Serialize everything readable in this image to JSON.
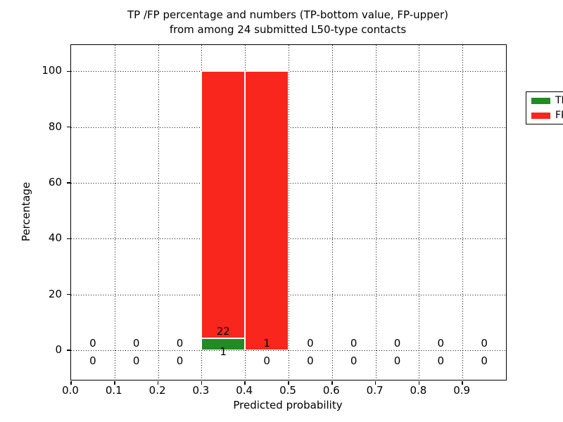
{
  "title": {
    "line1": "TP /FP percentage and numbers (TP-bottom value, FP-upper)",
    "line2": "from among 24 submitted L50-type contacts"
  },
  "axes": {
    "xlabel": "Predicted probability",
    "ylabel": "Percentage",
    "x_tick_labels": [
      "0.0",
      "0.1",
      "0.2",
      "0.3",
      "0.4",
      "0.5",
      "0.6",
      "0.7",
      "0.8",
      "0.9"
    ],
    "x_tick_values": [
      0.0,
      0.1,
      0.2,
      0.3,
      0.4,
      0.5,
      0.6,
      0.7,
      0.8,
      0.9
    ],
    "y_tick_labels": [
      "0",
      "20",
      "40",
      "60",
      "80",
      "100"
    ],
    "y_tick_values": [
      0,
      20,
      40,
      60,
      80,
      100
    ]
  },
  "legend": {
    "items": [
      {
        "name": "TP",
        "label": "TP",
        "color": "#228b22"
      },
      {
        "name": "FP",
        "label": "FP",
        "color": "#f9261d"
      }
    ]
  },
  "colors": {
    "tp": "#228b22",
    "fp": "#f9261d",
    "grid": "#000000",
    "text": "#000000",
    "background": "#ffffff"
  },
  "chart_data": {
    "type": "bar",
    "stacked": true,
    "title": "TP /FP percentage and numbers (TP-bottom value, FP-upper) from among 24 submitted L50-type contacts",
    "xlabel": "Predicted probability",
    "ylabel": "Percentage",
    "xlim": [
      0.0,
      1.0
    ],
    "ylim": [
      -10.6,
      109.4
    ],
    "bin_width": 0.1,
    "grid": "dotted",
    "legend_position": "upper right",
    "total_contacts": 24,
    "categories": [
      "0.0-0.1",
      "0.1-0.2",
      "0.2-0.3",
      "0.3-0.4",
      "0.4-0.5",
      "0.5-0.6",
      "0.6-0.7",
      "0.7-0.8",
      "0.8-0.9",
      "0.9-1.0"
    ],
    "series": [
      {
        "name": "TP",
        "color": "#228b22",
        "counts": [
          0,
          0,
          0,
          1,
          0,
          0,
          0,
          0,
          0,
          0
        ]
      },
      {
        "name": "FP",
        "color": "#f9261d",
        "counts": [
          0,
          0,
          0,
          22,
          1,
          0,
          0,
          0,
          0,
          0
        ]
      }
    ],
    "bins": [
      {
        "x_start": 0.0,
        "x_end": 0.1,
        "tp_count": 0,
        "fp_count": 0,
        "tp_pct": 0,
        "fp_pct": 0
      },
      {
        "x_start": 0.1,
        "x_end": 0.2,
        "tp_count": 0,
        "fp_count": 0,
        "tp_pct": 0,
        "fp_pct": 0
      },
      {
        "x_start": 0.2,
        "x_end": 0.3,
        "tp_count": 0,
        "fp_count": 0,
        "tp_pct": 0,
        "fp_pct": 0
      },
      {
        "x_start": 0.3,
        "x_end": 0.4,
        "tp_count": 1,
        "fp_count": 22,
        "tp_pct": 4.35,
        "fp_pct": 95.65
      },
      {
        "x_start": 0.4,
        "x_end": 0.5,
        "tp_count": 0,
        "fp_count": 1,
        "tp_pct": 0,
        "fp_pct": 100
      },
      {
        "x_start": 0.5,
        "x_end": 0.6,
        "tp_count": 0,
        "fp_count": 0,
        "tp_pct": 0,
        "fp_pct": 0
      },
      {
        "x_start": 0.6,
        "x_end": 0.7,
        "tp_count": 0,
        "fp_count": 0,
        "tp_pct": 0,
        "fp_pct": 0
      },
      {
        "x_start": 0.7,
        "x_end": 0.8,
        "tp_count": 0,
        "fp_count": 0,
        "tp_pct": 0,
        "fp_pct": 0
      },
      {
        "x_start": 0.8,
        "x_end": 0.9,
        "tp_count": 0,
        "fp_count": 0,
        "tp_pct": 0,
        "fp_pct": 0
      },
      {
        "x_start": 0.9,
        "x_end": 1.0,
        "tp_count": 0,
        "fp_count": 0,
        "tp_pct": 0,
        "fp_pct": 0
      }
    ]
  }
}
